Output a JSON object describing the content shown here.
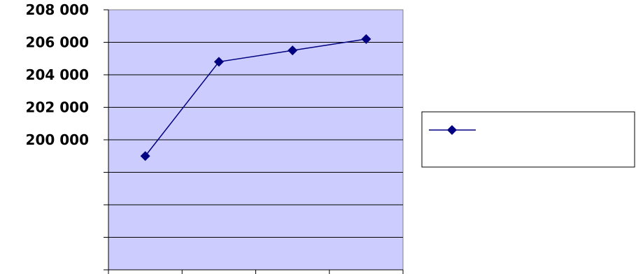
{
  "chart_data": {
    "type": "line",
    "title": "",
    "xlabel": "",
    "ylabel": "",
    "categories": [
      "",
      "",
      "",
      ""
    ],
    "series": [
      {
        "values": [
          199000,
          204800,
          205500,
          206200
        ],
        "color": "#000080",
        "marker": "diamond"
      }
    ],
    "ylim": [
      192000,
      208000
    ],
    "yticks": [
      192000,
      194000,
      196000,
      198000,
      200000,
      202000,
      204000,
      206000,
      208000
    ],
    "ytick_labels": [
      "",
      "",
      "",
      "",
      "200 000",
      "202 000",
      "204 000",
      "206 000",
      "208 000"
    ],
    "grid": true,
    "plot_background": "#ccccff",
    "legend": {
      "placement": "right",
      "entries": [
        ""
      ]
    }
  }
}
